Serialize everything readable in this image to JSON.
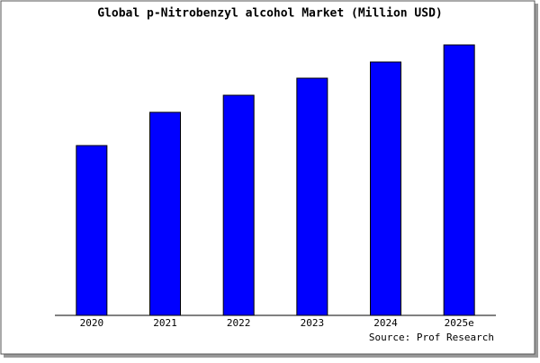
{
  "chart_data": {
    "type": "bar",
    "title": "Global p-Nitrobenzyl alcohol Market (Million USD)",
    "categories": [
      "2020",
      "2021",
      "2022",
      "2023",
      "2024",
      "2025e"
    ],
    "values": [
      189,
      226,
      245,
      264,
      282,
      301
    ],
    "color": "#0000ff",
    "ylim": [
      0,
      311
    ],
    "source": "Source: Prof Research"
  }
}
